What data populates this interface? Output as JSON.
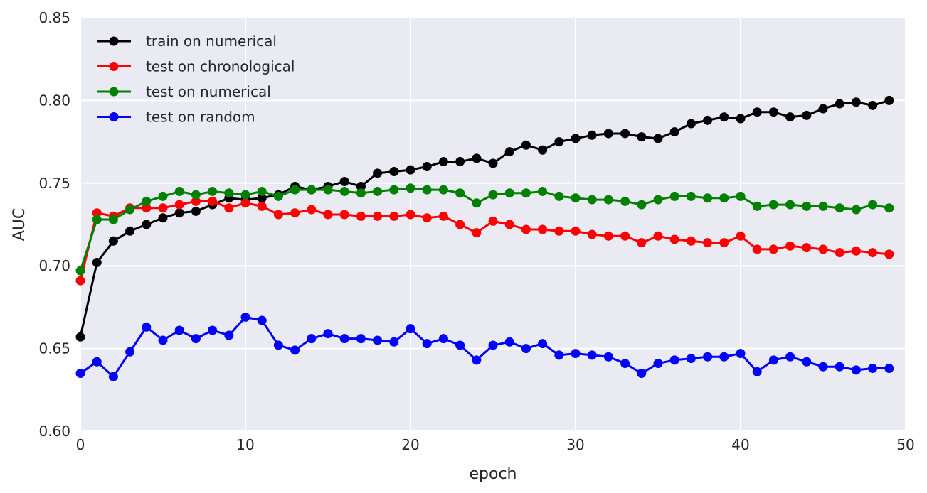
{
  "chart_data": {
    "type": "line",
    "title": "",
    "xlabel": "epoch",
    "ylabel": "AUC",
    "xlim": [
      0,
      50
    ],
    "ylim": [
      0.6,
      0.85
    ],
    "xticks": [
      0,
      10,
      20,
      30,
      40,
      50
    ],
    "xtick_labels": [
      "0",
      "10",
      "20",
      "30",
      "40",
      "50"
    ],
    "yticks": [
      0.6,
      0.65,
      0.7,
      0.75,
      0.8,
      0.85
    ],
    "ytick_labels": [
      "0.60",
      "0.65",
      "0.70",
      "0.75",
      "0.80",
      "0.85"
    ],
    "grid": true,
    "legend_position": "top-left",
    "plot_background": "#EAEAF2",
    "x": [
      0,
      1,
      2,
      3,
      4,
      5,
      6,
      7,
      8,
      9,
      10,
      11,
      12,
      13,
      14,
      15,
      16,
      17,
      18,
      19,
      20,
      21,
      22,
      23,
      24,
      25,
      26,
      27,
      28,
      29,
      30,
      31,
      32,
      33,
      34,
      35,
      36,
      37,
      38,
      39,
      40,
      41,
      42,
      43,
      44,
      45,
      46,
      47,
      48,
      49
    ],
    "series": [
      {
        "name": "train on numerical",
        "color": "#000000",
        "values": [
          0.657,
          0.702,
          0.715,
          0.721,
          0.725,
          0.729,
          0.732,
          0.733,
          0.737,
          0.741,
          0.74,
          0.741,
          0.743,
          0.748,
          0.746,
          0.748,
          0.751,
          0.748,
          0.756,
          0.757,
          0.758,
          0.76,
          0.763,
          0.763,
          0.765,
          0.762,
          0.769,
          0.773,
          0.77,
          0.775,
          0.777,
          0.779,
          0.78,
          0.78,
          0.778,
          0.777,
          0.781,
          0.786,
          0.788,
          0.79,
          0.789,
          0.793,
          0.793,
          0.79,
          0.791,
          0.795,
          0.798,
          0.799,
          0.797,
          0.8
        ]
      },
      {
        "name": "test on chronological",
        "color": "#FF0000",
        "values": [
          0.691,
          0.732,
          0.73,
          0.735,
          0.735,
          0.735,
          0.737,
          0.739,
          0.739,
          0.735,
          0.738,
          0.736,
          0.731,
          0.732,
          0.734,
          0.731,
          0.731,
          0.73,
          0.73,
          0.73,
          0.731,
          0.729,
          0.73,
          0.725,
          0.72,
          0.727,
          0.725,
          0.722,
          0.722,
          0.721,
          0.721,
          0.719,
          0.718,
          0.718,
          0.714,
          0.718,
          0.716,
          0.715,
          0.714,
          0.714,
          0.718,
          0.71,
          0.71,
          0.712,
          0.711,
          0.71,
          0.708,
          0.709,
          0.708,
          0.707
        ]
      },
      {
        "name": "test on numerical",
        "color": "#008000",
        "values": [
          0.697,
          0.728,
          0.728,
          0.734,
          0.739,
          0.742,
          0.745,
          0.743,
          0.745,
          0.744,
          0.743,
          0.745,
          0.742,
          0.746,
          0.746,
          0.746,
          0.745,
          0.744,
          0.745,
          0.746,
          0.747,
          0.746,
          0.746,
          0.744,
          0.738,
          0.743,
          0.744,
          0.744,
          0.745,
          0.742,
          0.741,
          0.74,
          0.74,
          0.739,
          0.737,
          0.74,
          0.742,
          0.742,
          0.741,
          0.741,
          0.742,
          0.736,
          0.737,
          0.737,
          0.736,
          0.736,
          0.735,
          0.734,
          0.737,
          0.735
        ]
      },
      {
        "name": "test on random",
        "color": "#0000FF",
        "values": [
          0.635,
          0.642,
          0.633,
          0.648,
          0.663,
          0.655,
          0.661,
          0.656,
          0.661,
          0.658,
          0.669,
          0.667,
          0.652,
          0.649,
          0.656,
          0.659,
          0.656,
          0.656,
          0.655,
          0.654,
          0.662,
          0.653,
          0.656,
          0.652,
          0.643,
          0.652,
          0.654,
          0.65,
          0.653,
          0.646,
          0.647,
          0.646,
          0.645,
          0.641,
          0.635,
          0.641,
          0.643,
          0.644,
          0.645,
          0.645,
          0.647,
          0.636,
          0.643,
          0.645,
          0.642,
          0.639,
          0.639,
          0.637,
          0.638,
          0.638
        ]
      }
    ]
  }
}
